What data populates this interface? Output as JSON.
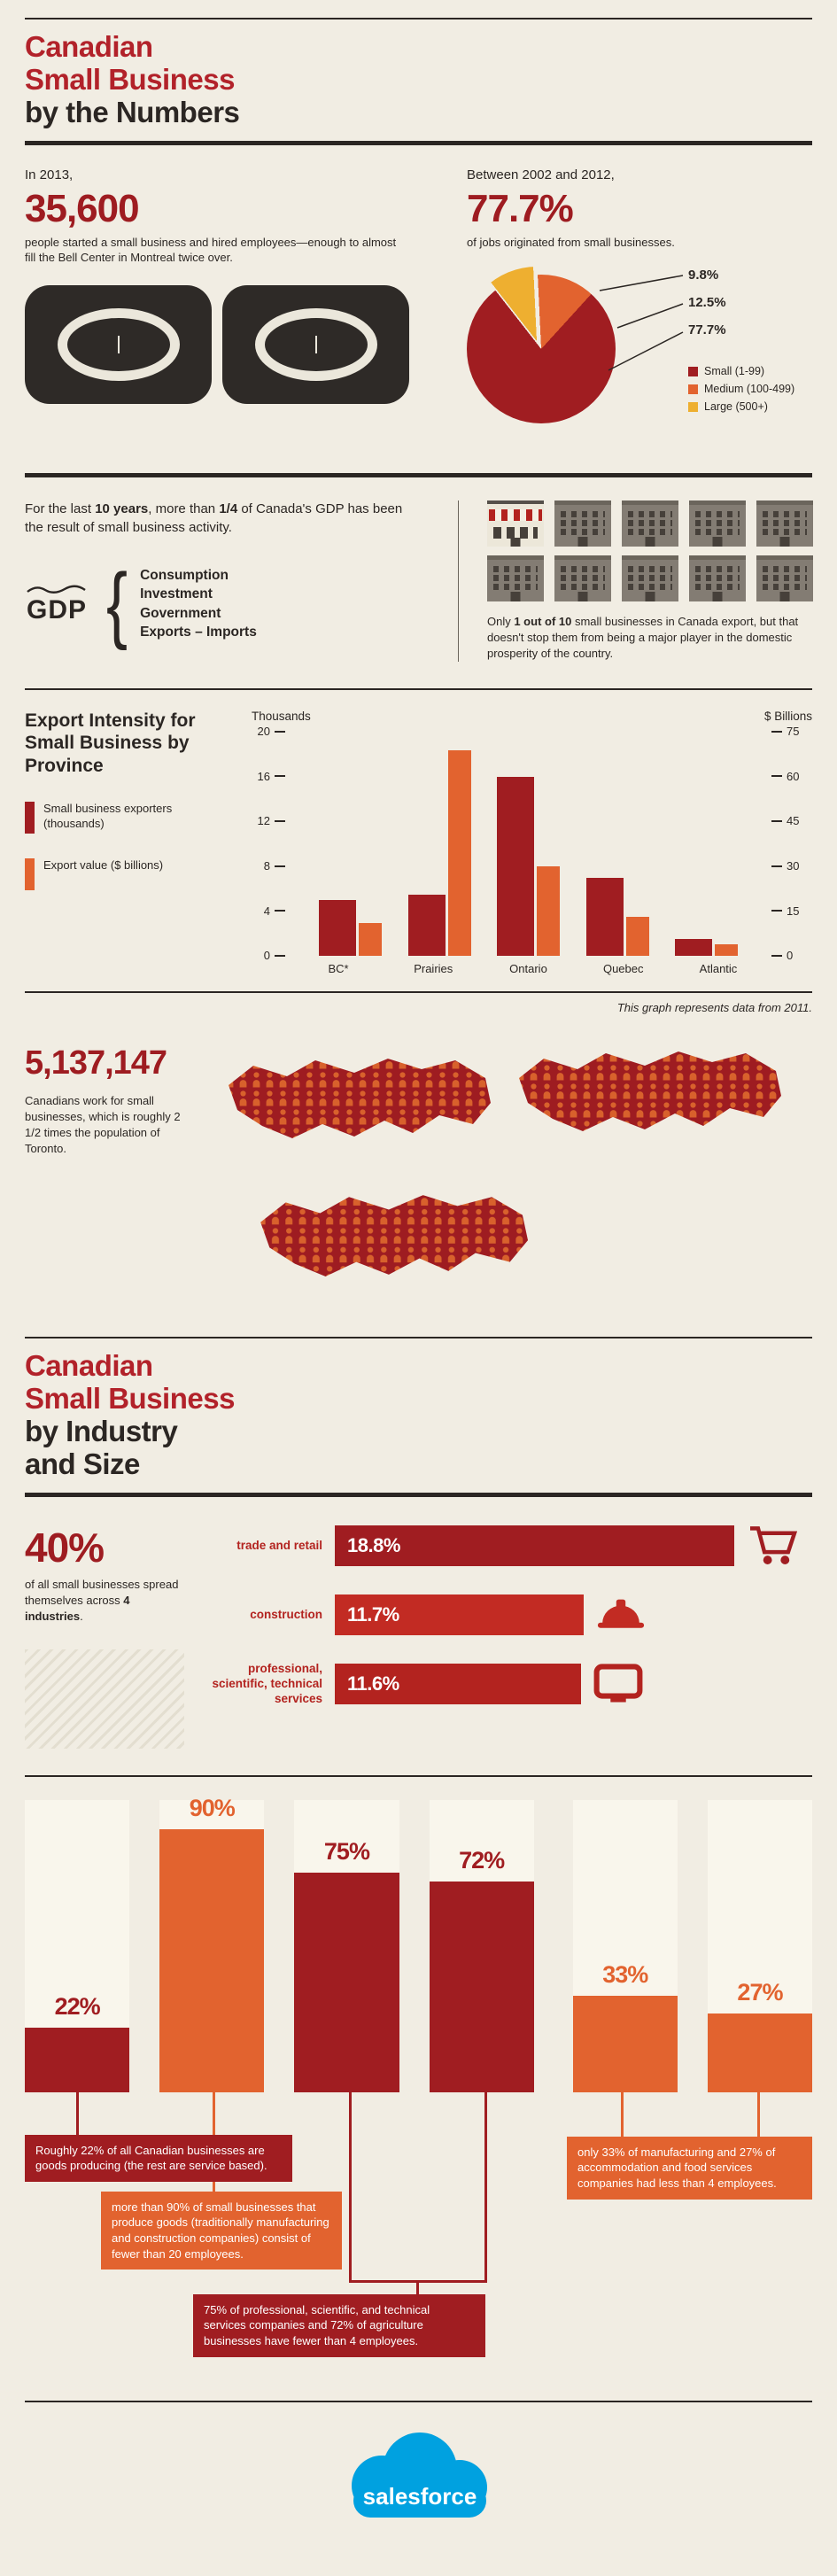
{
  "colors": {
    "background": "#f1ede3",
    "ink": "#2b2623",
    "red_dark": "#9e1c21",
    "red_bright": "#b2222a",
    "orange": "#e2632f",
    "yellow": "#eeaf30",
    "salesforce_blue": "#00a1e0"
  },
  "header1": {
    "line1": "Canadian",
    "line2": "Small Business",
    "line3": "by the Numbers"
  },
  "startups": {
    "intro": "In 2013,",
    "number": "35,600",
    "desc": "people started a small business and hired employees—enough to almost fill the Bell Center in Montreal twice over."
  },
  "jobs": {
    "intro": "Between 2002 and 2012,",
    "number": "77.7%",
    "desc": "of jobs originated from small businesses."
  },
  "gdp": {
    "sentence": [
      "For the last ",
      "10 years",
      ", more than ",
      "1/4",
      " of Canada's GDP has been the result of small business activity."
    ],
    "label": "GDP",
    "components": [
      "Consumption",
      "Investment",
      "Government",
      "Exports – Imports"
    ],
    "export_note": [
      "Only ",
      "1 out of 10",
      " small businesses in Canada export, but that doesn't stop them from being a major player in the domestic prosperity of the country."
    ]
  },
  "workers": {
    "number": "5,137,147",
    "desc": "Canadians work for small businesses, which is roughly 2 1/2 times the population of Toronto."
  },
  "header2": {
    "line1": "Canadian",
    "line2": "Small Business",
    "line3": "by Industry",
    "line4": "and Size"
  },
  "industries": {
    "number": "40%",
    "desc": [
      "of all small businesses spread themselves across ",
      "4 industries",
      "."
    ]
  },
  "size_callouts": {
    "a": "Roughly 22% of all Canadian businesses are goods producing (the rest are service based).",
    "b": "more than 90% of small businesses that produce goods (traditionally manufacturing and construction companies) consist of fewer than 20 employees.",
    "c": "75% of professional, scientific, and technical services companies and 72% of agriculture businesses have fewer than 4 employees.",
    "d": "only 33% of manufacturing and 27% of accommodation and food services companies had less than 4 employees."
  },
  "footer": {
    "logo_text": "salesforce"
  },
  "chart_data": [
    {
      "type": "pie",
      "title": "Share of jobs originated by business size, 2002–2012",
      "labels": [
        "Small (1-99)",
        "Medium (100-499)",
        "Large (500+)"
      ],
      "values": [
        77.7,
        12.5,
        9.8
      ],
      "colors": [
        "#a01d21",
        "#e2632f",
        "#eeaf30"
      ],
      "callouts": [
        "9.8%",
        "12.5%",
        "77.7%"
      ],
      "legend_position": "right"
    },
    {
      "type": "bar",
      "title": "Export Intensity for Small Business by Province",
      "categories": [
        "BC*",
        "Prairies",
        "Ontario",
        "Quebec",
        "Atlantic"
      ],
      "series": [
        {
          "name": "Small business exporters (thousands)",
          "axis": "left",
          "color": "#a01d21",
          "values": [
            5,
            5.5,
            16,
            7,
            1.5
          ]
        },
        {
          "name": "Export value ($ billions)",
          "axis": "right",
          "color": "#e2632f",
          "values": [
            11,
            69,
            30,
            13,
            4
          ]
        }
      ],
      "left_axis": {
        "label": "Thousands",
        "max": 20,
        "ticks": [
          20,
          16,
          12,
          8,
          4,
          0
        ]
      },
      "right_axis": {
        "label": "$ Billions",
        "max": 75,
        "ticks": [
          75,
          60,
          45,
          30,
          15,
          0
        ]
      },
      "grid": false,
      "footnote": "This graph represents data from 2011."
    },
    {
      "type": "bar",
      "title": "Top industries for small business",
      "categories": [
        "trade and retail",
        "construction",
        "professional, scientific, technical services"
      ],
      "values": [
        18.8,
        11.7,
        11.6
      ],
      "labels": [
        "18.8%",
        "11.7%",
        "11.6%"
      ],
      "colors": [
        "#a01d21",
        "#c22b23",
        "#b3231f"
      ]
    },
    {
      "type": "bar",
      "title": "Business size distribution",
      "categories": [
        "goods producing businesses",
        "goods producers with fewer than 20 employees",
        "professional, scientific and technical services with fewer than 4 employees",
        "agriculture businesses with fewer than 4 employees",
        "manufacturing with less than 4 employees",
        "accommodation and food services with less than 4 employees"
      ],
      "values": [
        22,
        90,
        75,
        72,
        33,
        27
      ],
      "labels": [
        "22%",
        "90%",
        "75%",
        "72%",
        "33%",
        "27%"
      ],
      "colors": [
        "#a01d21",
        "#e2632f",
        "#a01d21",
        "#a01d21",
        "#e2632f",
        "#e2632f"
      ],
      "ylim": [
        0,
        100
      ]
    }
  ]
}
